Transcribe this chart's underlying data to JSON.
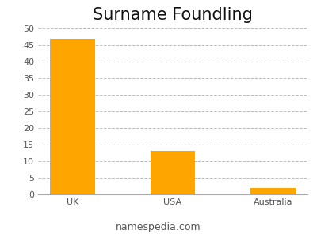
{
  "title": "Surname Foundling",
  "categories": [
    "UK",
    "USA",
    "Australia"
  ],
  "values": [
    47,
    13,
    2
  ],
  "bar_color": "#FFA500",
  "ylim": [
    0,
    50
  ],
  "yticks": [
    0,
    5,
    10,
    15,
    20,
    25,
    30,
    35,
    40,
    45,
    50
  ],
  "grid_color": "#bbbbbb",
  "background_color": "#ffffff",
  "title_fontsize": 15,
  "tick_fontsize": 8,
  "watermark": "namespedia.com",
  "watermark_fontsize": 9
}
